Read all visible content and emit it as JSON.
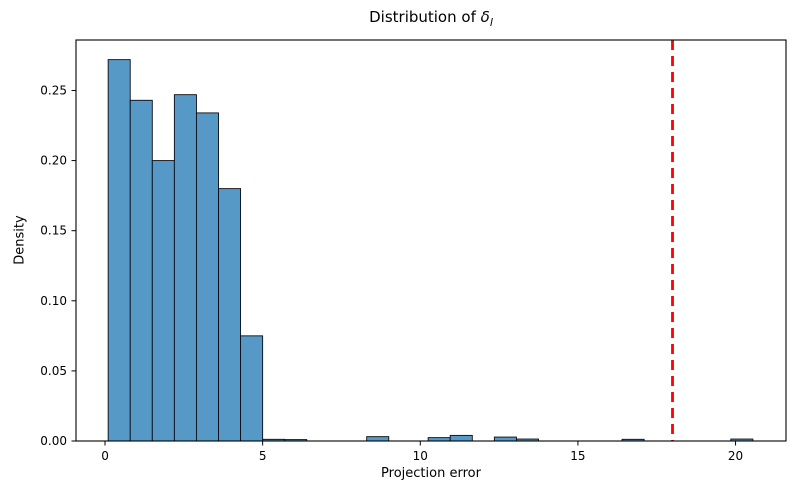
{
  "chart_data": {
    "type": "bar",
    "subtype": "histogram",
    "title_prefix": "Distribution of ",
    "title_symbol": "δ",
    "title_subscript": "l",
    "xlabel": "Projection error",
    "ylabel": "Density",
    "x_ticks": [
      0,
      5,
      10,
      15,
      20
    ],
    "y_ticks": [
      {
        "v": 0.0,
        "label": "0.00"
      },
      {
        "v": 0.05,
        "label": "0.05"
      },
      {
        "v": 0.1,
        "label": "0.10"
      },
      {
        "v": 0.15,
        "label": "0.15"
      },
      {
        "v": 0.2,
        "label": "0.20"
      },
      {
        "v": 0.25,
        "label": "0.25"
      }
    ],
    "xlim": [
      -0.92,
      21.6
    ],
    "ylim": [
      0,
      0.286
    ],
    "grid": false,
    "legend": null,
    "colors": {
      "bar_fill": "#5799C6",
      "bar_edge": "#0a0a14",
      "vline": "#ff0000",
      "spine": "#000000",
      "text": "#000000"
    },
    "vline": {
      "x": 18.0,
      "style": "dashed",
      "width": 2.8
    },
    "bins": [
      {
        "x0": 0.1,
        "x1": 0.8,
        "density": 0.272
      },
      {
        "x0": 0.8,
        "x1": 1.5,
        "density": 0.243
      },
      {
        "x0": 1.5,
        "x1": 2.2,
        "density": 0.2
      },
      {
        "x0": 2.2,
        "x1": 2.9,
        "density": 0.247
      },
      {
        "x0": 2.9,
        "x1": 3.6,
        "density": 0.234
      },
      {
        "x0": 3.6,
        "x1": 4.3,
        "density": 0.18
      },
      {
        "x0": 4.3,
        "x1": 5.0,
        "density": 0.075
      },
      {
        "x0": 5.0,
        "x1": 5.7,
        "density": 0.0012
      },
      {
        "x0": 5.7,
        "x1": 6.4,
        "density": 0.001
      },
      {
        "x0": 8.3,
        "x1": 9.0,
        "density": 0.0031
      },
      {
        "x0": 10.25,
        "x1": 10.95,
        "density": 0.0024
      },
      {
        "x0": 10.95,
        "x1": 11.65,
        "density": 0.004
      },
      {
        "x0": 12.35,
        "x1": 13.05,
        "density": 0.0028
      },
      {
        "x0": 13.05,
        "x1": 13.75,
        "density": 0.0014
      },
      {
        "x0": 16.4,
        "x1": 17.1,
        "density": 0.0012
      },
      {
        "x0": 19.85,
        "x1": 20.55,
        "density": 0.0014
      }
    ]
  }
}
